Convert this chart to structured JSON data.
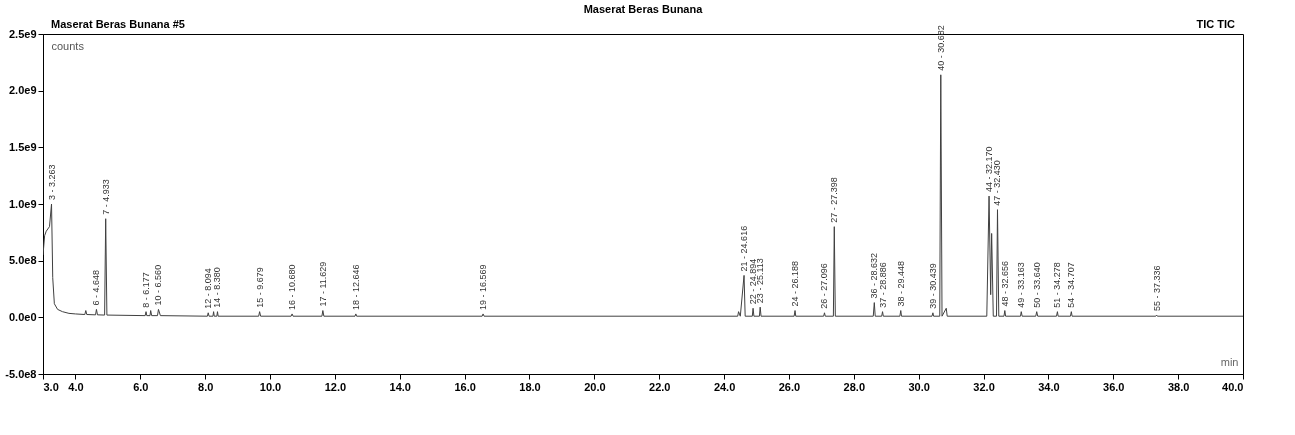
{
  "chart_data": {
    "type": "line",
    "title": "Maserat Beras Bunana",
    "xlabel": "min",
    "ylabel": "counts",
    "xlim": [
      3.0,
      40.0
    ],
    "xticks": [
      {
        "value": 3,
        "label": "3.0"
      },
      {
        "value": 4,
        "label": "4.0"
      },
      {
        "value": 6,
        "label": "6.0"
      },
      {
        "value": 8,
        "label": "8.0"
      },
      {
        "value": 10,
        "label": "10.0"
      },
      {
        "value": 12,
        "label": "12.0"
      },
      {
        "value": 14,
        "label": "14.0"
      },
      {
        "value": 16,
        "label": "16.0"
      },
      {
        "value": 18,
        "label": "18.0"
      },
      {
        "value": 20,
        "label": "20.0"
      },
      {
        "value": 22,
        "label": "22.0"
      },
      {
        "value": 24,
        "label": "24.0"
      },
      {
        "value": 26,
        "label": "26.0"
      },
      {
        "value": 28,
        "label": "28.0"
      },
      {
        "value": 30,
        "label": "30.0"
      },
      {
        "value": 32,
        "label": "32.0"
      },
      {
        "value": 34,
        "label": "34.0"
      },
      {
        "value": 36,
        "label": "36.0"
      },
      {
        "value": 38,
        "label": "38.0"
      },
      {
        "value": 40,
        "label": "40.0"
      }
    ],
    "ylim": [
      -500000000,
      2500000000
    ],
    "yticks": [
      {
        "value": -500000000,
        "label": "-5.0e8"
      },
      {
        "value": 0,
        "label": "0.0e0"
      },
      {
        "value": 500000000,
        "label": "5.0e8"
      },
      {
        "value": 1000000000,
        "label": "1.0e9"
      },
      {
        "value": 1500000000,
        "label": "1.5e9"
      },
      {
        "value": 2000000000,
        "label": "2.0e9"
      },
      {
        "value": 2500000000,
        "label": "2.5e9"
      }
    ],
    "grid": false,
    "legend": false,
    "series": [
      {
        "color": "#404040",
        "x": [
          3.0,
          3.05,
          3.1,
          3.2,
          3.263,
          3.3,
          3.35,
          3.45,
          3.6,
          3.8,
          4.0,
          4.29,
          4.32,
          4.35,
          4.62,
          4.648,
          4.68,
          4.9,
          4.933,
          4.97,
          6.15,
          6.177,
          6.2,
          6.3,
          6.32,
          6.35,
          6.53,
          6.56,
          6.62,
          8.07,
          8.094,
          8.12,
          8.24,
          8.26,
          8.28,
          8.36,
          8.38,
          8.4,
          9.65,
          9.679,
          9.71,
          10.65,
          10.68,
          10.71,
          11.6,
          11.629,
          11.66,
          12.62,
          12.646,
          12.67,
          16.54,
          16.569,
          16.6,
          24.42,
          24.447,
          24.5,
          24.616,
          24.65,
          24.87,
          24.894,
          24.92,
          25.09,
          25.113,
          25.14,
          26.16,
          26.188,
          26.21,
          27.07,
          27.096,
          27.12,
          27.37,
          27.398,
          27.43,
          28.6,
          28.632,
          28.66,
          28.86,
          28.886,
          28.91,
          29.42,
          29.448,
          29.47,
          30.41,
          30.439,
          30.46,
          30.65,
          30.682,
          30.72,
          30.85,
          30.88,
          32.1,
          32.17,
          32.22,
          32.25,
          32.3,
          32.4,
          32.43,
          32.47,
          32.63,
          32.656,
          32.68,
          33.14,
          33.163,
          33.19,
          33.61,
          33.64,
          33.67,
          34.25,
          34.278,
          34.3,
          34.68,
          34.707,
          34.73,
          37.31,
          37.336,
          37.36,
          40.0
        ],
        "values": [
          550000000,
          720000000,
          760000000,
          800000000,
          1000000000,
          350000000,
          120000000,
          70000000,
          50000000,
          35000000,
          30000000,
          25000000,
          60000000,
          25000000,
          22000000,
          70000000,
          22000000,
          20000000,
          870000000,
          20000000,
          15000000,
          50000000,
          15000000,
          15000000,
          60000000,
          15000000,
          15000000,
          70000000,
          15000000,
          10000000,
          40000000,
          10000000,
          10000000,
          50000000,
          10000000,
          10000000,
          50000000,
          10000000,
          10000000,
          50000000,
          10000000,
          10000000,
          30000000,
          10000000,
          10000000,
          60000000,
          10000000,
          10000000,
          30000000,
          10000000,
          10000000,
          30000000,
          10000000,
          10000000,
          50000000,
          10000000,
          370000000,
          10000000,
          10000000,
          80000000,
          10000000,
          10000000,
          90000000,
          10000000,
          10000000,
          60000000,
          10000000,
          10000000,
          40000000,
          10000000,
          10000000,
          800000000,
          10000000,
          10000000,
          130000000,
          10000000,
          10000000,
          50000000,
          10000000,
          10000000,
          60000000,
          10000000,
          10000000,
          40000000,
          10000000,
          10000000,
          2140000000,
          10000000,
          80000000,
          10000000,
          10000000,
          1070000000,
          200000000,
          740000000,
          10000000,
          10000000,
          950000000,
          10000000,
          10000000,
          60000000,
          10000000,
          10000000,
          50000000,
          10000000,
          10000000,
          50000000,
          10000000,
          10000000,
          50000000,
          10000000,
          10000000,
          50000000,
          10000000,
          10000000,
          20000000,
          10000000,
          10000000
        ]
      }
    ],
    "annotations": [
      "Maserat Beras Bunana #5",
      "TIC TIC",
      {
        "text": "3 - 3.263",
        "x": 3.263,
        "y": 1000000000
      },
      {
        "text": "6 - 4.648",
        "x": 4.648,
        "y": 70000000
      },
      {
        "text": "7 - 4.933",
        "x": 4.933,
        "y": 870000000
      },
      {
        "text": "8 - 6.177",
        "x": 6.177,
        "y": 50000000
      },
      {
        "text": "10 - 6.560",
        "x": 6.56,
        "y": 70000000
      },
      {
        "text": "12 - 8.094",
        "x": 8.094,
        "y": 40000000
      },
      {
        "text": "14 - 8.380",
        "x": 8.38,
        "y": 50000000
      },
      {
        "text": "15 - 9.679",
        "x": 9.679,
        "y": 50000000
      },
      {
        "text": "16 - 10.680",
        "x": 10.68,
        "y": 30000000
      },
      {
        "text": "17 - 11.629",
        "x": 11.629,
        "y": 60000000
      },
      {
        "text": "18 - 12.646",
        "x": 12.646,
        "y": 30000000
      },
      {
        "text": "19 - 16.569",
        "x": 16.569,
        "y": 30000000
      },
      {
        "text": "21 - 24.616",
        "x": 24.616,
        "y": 370000000
      },
      {
        "text": "22 - 24.894",
        "x": 24.894,
        "y": 80000000
      },
      {
        "text": "23 - 25.113",
        "x": 25.113,
        "y": 90000000
      },
      {
        "text": "24 - 26.188",
        "x": 26.188,
        "y": 60000000
      },
      {
        "text": "26 - 27.096",
        "x": 27.096,
        "y": 40000000
      },
      {
        "text": "27 - 27.398",
        "x": 27.398,
        "y": 800000000
      },
      {
        "text": "36 - 28.632",
        "x": 28.632,
        "y": 130000000
      },
      {
        "text": "37 - 28.886",
        "x": 28.886,
        "y": 50000000
      },
      {
        "text": "38 - 29.448",
        "x": 29.448,
        "y": 60000000
      },
      {
        "text": "39 - 30.439",
        "x": 30.439,
        "y": 40000000
      },
      {
        "text": "40 - 30.682",
        "x": 30.682,
        "y": 2140000000
      },
      {
        "text": "44 - 32.170",
        "x": 32.17,
        "y": 1070000000
      },
      {
        "text": "47 - 32.430",
        "x": 32.43,
        "y": 950000000
      },
      {
        "text": "48 - 32.656",
        "x": 32.656,
        "y": 60000000
      },
      {
        "text": "49 - 33.163",
        "x": 33.163,
        "y": 50000000
      },
      {
        "text": "50 - 33.640",
        "x": 33.64,
        "y": 50000000
      },
      {
        "text": "51 - 34.278",
        "x": 34.278,
        "y": 50000000
      },
      {
        "text": "54 - 34.707",
        "x": 34.707,
        "y": 50000000
      },
      {
        "text": "55 - 37.336",
        "x": 37.336,
        "y": 20000000
      }
    ]
  }
}
